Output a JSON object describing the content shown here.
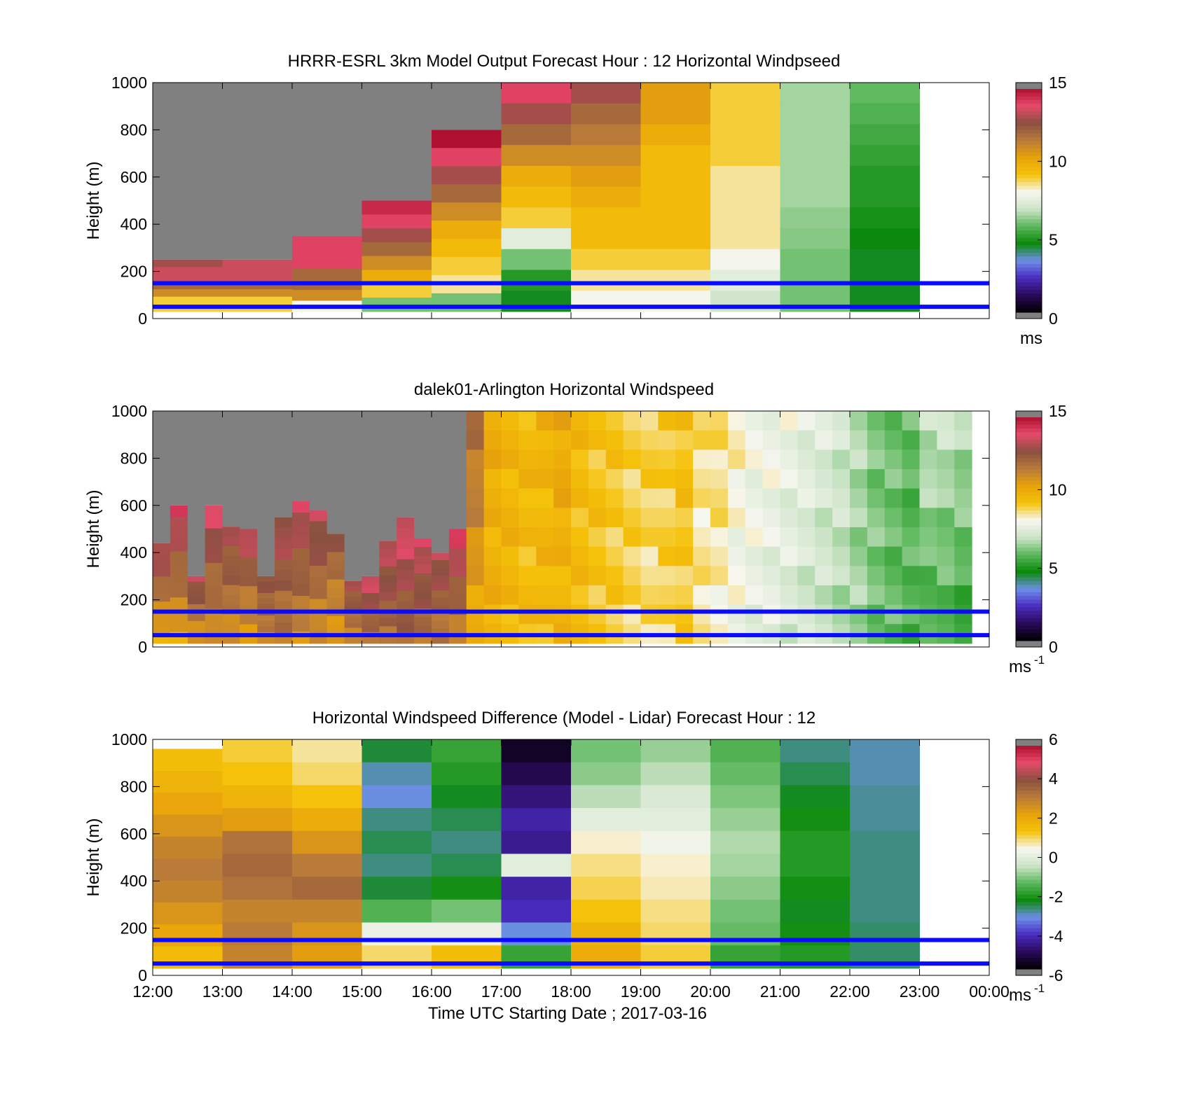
{
  "palette": {
    "windspeed_stops": [
      "#000000",
      "#2a0a5a",
      "#4a2cc0",
      "#6d8fe8",
      "#0a8a0a",
      "#5cb85c",
      "#cde4c8",
      "#f7f7f0",
      "#f5c20a",
      "#e8a20a",
      "#b87a3a",
      "#8a5040",
      "#e64a6a",
      "#b01030"
    ],
    "difference_stops": [
      "#000000",
      "#2a0a5a",
      "#4a2cc0",
      "#6d8fe8",
      "#0a8a0a",
      "#5cb85c",
      "#cde4c8",
      "#f7f7f0",
      "#f5c20a",
      "#e8a20a",
      "#b87a3a",
      "#8a5040",
      "#e64a6a",
      "#b01030"
    ],
    "overflow_color": "#808080",
    "reference_line_color": "#0a0aff"
  },
  "chart_data": [
    {
      "type": "heatmap",
      "title": "HRRR-ESRL 3km Model Output   Forecast Hour : 12 Horizontal Windpseed",
      "ylabel": "Height (m)",
      "xlabel": "",
      "ylim": [
        0,
        1000
      ],
      "yticks": [
        "0",
        "200",
        "400",
        "600",
        "800",
        "1000"
      ],
      "xlim_hours": [
        12,
        24
      ],
      "x_ticks_labeled": false,
      "colorbar": {
        "min": 0,
        "max": 15,
        "ticks": [
          "0",
          "5",
          "10",
          "15"
        ],
        "unit": "ms",
        "unit_sup": ""
      },
      "reference_lines_m": [
        150,
        50
      ],
      "columns": [
        {
          "time": "12:00",
          "top": 250,
          "values": [
            13,
            13.5,
            13.5,
            12,
            11,
            9,
            9
          ]
        },
        {
          "time": "13:00",
          "top": 250,
          "values": [
            13.5,
            13.5,
            13.5,
            12,
            11,
            9,
            9
          ]
        },
        {
          "time": "14:00",
          "top": 350,
          "values": [
            14,
            14,
            14,
            12,
            12,
            11,
            8
          ]
        },
        {
          "time": "15:00",
          "top": 500,
          "values": [
            14.5,
            14,
            13,
            12,
            11,
            10,
            9,
            6
          ]
        },
        {
          "time": "16:00",
          "top": 800,
          "values": [
            15,
            14,
            13,
            12,
            11,
            10,
            9.5,
            9,
            8.5,
            6
          ]
        },
        {
          "time": "17:00",
          "top": 1000,
          "values": [
            14,
            13,
            12,
            11,
            10,
            9.5,
            9,
            7.5,
            6,
            5,
            4.5
          ]
        },
        {
          "time": "18:00",
          "top": 1000,
          "values": [
            13,
            12,
            11.5,
            11,
            10.5,
            10,
            9.5,
            9.5,
            9,
            8.5,
            8
          ]
        },
        {
          "time": "19:00",
          "top": 1000,
          "values": [
            10.5,
            10.5,
            10,
            9.5,
            9.5,
            9.5,
            9.5,
            9.5,
            9,
            8.5,
            8
          ]
        },
        {
          "time": "20:00",
          "top": 1000,
          "values": [
            9,
            9,
            9,
            9,
            8.5,
            8.5,
            8.5,
            8.5,
            8,
            7.5,
            7
          ]
        },
        {
          "time": "21:00",
          "top": 1000,
          "values": [
            6.5,
            6.5,
            6.5,
            6.5,
            6.5,
            6.5,
            6.3,
            6.2,
            6,
            6,
            6
          ]
        },
        {
          "time": "22:00",
          "top": 1000,
          "values": [
            5.8,
            5.6,
            5.4,
            5.2,
            5,
            5,
            4.8,
            4.6,
            4.5,
            4.5,
            4.5
          ]
        }
      ]
    },
    {
      "type": "heatmap",
      "title": "dalek01-Arlington  Horizontal Windspeed",
      "ylabel": "Height (m)",
      "xlabel": "",
      "ylim": [
        0,
        1000
      ],
      "yticks": [
        "0",
        "200",
        "400",
        "600",
        "800",
        "1000"
      ],
      "xlim_hours": [
        12,
        24
      ],
      "x_ticks_labeled": false,
      "colorbar": {
        "min": 0,
        "max": 15,
        "ticks": [
          "0",
          "5",
          "10",
          "15"
        ],
        "unit": "ms",
        "unit_sup": "-1"
      },
      "reference_lines_m": [
        150,
        50
      ],
      "columns_every_15min": {
        "start_hour": 12.0,
        "column_hours": 0.25,
        "tops": [
          440,
          600,
          300,
          600,
          510,
          500,
          300,
          550,
          620,
          580,
          480,
          280,
          300,
          450,
          550,
          460,
          400,
          500,
          1000,
          1000,
          1000,
          1000,
          1000,
          1000,
          1000,
          1000,
          1000,
          1000,
          1000,
          1000,
          1000,
          1000,
          1000,
          1000,
          1000,
          1000,
          1000,
          1000,
          1000,
          1000,
          1000,
          1000,
          1000,
          1000,
          1000,
          1000,
          1000
        ],
        "speed_top": [
          13.5,
          13.8,
          13.2,
          13.6,
          13.0,
          13.4,
          12.8,
          13.2,
          13.5,
          13.3,
          12.5,
          13.0,
          13.6,
          13.4,
          13.8,
          13.5,
          13.2,
          14.0,
          12.0,
          10.0,
          9.8,
          9.6,
          9.8,
          10.2,
          9.5,
          9.3,
          9.2,
          9.0,
          9.0,
          9.1,
          9.4,
          8.6,
          8.8,
          8.3,
          8.0,
          7.9,
          7.8,
          7.6,
          7.4,
          7.2,
          6.6,
          6.2,
          6.0,
          5.8,
          7.0,
          7.0,
          6.8
        ],
        "speed_bottom": [
          10.0,
          10.2,
          10.5,
          10.8,
          11.0,
          10.5,
          11.2,
          11.5,
          11.0,
          10.8,
          10.5,
          11.2,
          11.5,
          11.8,
          12.0,
          11.8,
          11.5,
          11.0,
          10.0,
          9.8,
          9.6,
          9.4,
          9.5,
          9.6,
          9.4,
          9.2,
          9.0,
          8.8,
          8.6,
          8.8,
          9.0,
          8.4,
          8.2,
          7.8,
          7.6,
          7.5,
          7.2,
          7.0,
          6.8,
          6.6,
          6.4,
          6.0,
          5.8,
          5.6,
          5.4,
          5.4,
          5.2
        ]
      }
    },
    {
      "type": "heatmap",
      "title": "Horizontal Windspeed Difference (Model - Lidar) Forecast Hour : 12",
      "ylabel": "Height (m)",
      "xlabel": "Time UTC  Starting Date ; 2017-03-16",
      "ylim": [
        0,
        1000
      ],
      "yticks": [
        "0",
        "200",
        "400",
        "600",
        "800",
        "1000"
      ],
      "xlim_hours": [
        12,
        24
      ],
      "xticks": [
        "12:00",
        "13:00",
        "14:00",
        "15:00",
        "16:00",
        "17:00",
        "18:00",
        "19:00",
        "20:00",
        "21:00",
        "22:00",
        "23:00",
        "00:00"
      ],
      "colorbar": {
        "min": -6,
        "max": 6,
        "ticks": [
          "-6",
          "-4",
          "-2",
          "0",
          "2",
          "4",
          "6"
        ],
        "unit": "ms",
        "unit_sup": "-1"
      },
      "reference_lines_m": [
        150,
        50
      ],
      "columns": [
        {
          "time": "12:00",
          "top": 960,
          "values": [
            1.5,
            1.8,
            2.2,
            2.6,
            3.0,
            3.2,
            3.0,
            2.6,
            2.2,
            1.6
          ]
        },
        {
          "time": "13:00",
          "top": 1000,
          "values": [
            1.2,
            1.4,
            1.8,
            2.4,
            3.4,
            3.6,
            3.4,
            3.0,
            3.2,
            3.0
          ]
        },
        {
          "time": "14:00",
          "top": 1000,
          "values": [
            0.8,
            1.0,
            1.4,
            2.0,
            2.6,
            3.2,
            3.6,
            3.0,
            2.6,
            2.4
          ]
        },
        {
          "time": "15:00",
          "top": 1000,
          "values": [
            -2.5,
            -3.0,
            -3.2,
            -2.8,
            -2.6,
            -2.8,
            -2.5,
            -1.5,
            0.2,
            1.0
          ]
        },
        {
          "time": "16:00",
          "top": 1000,
          "values": [
            -1.8,
            -2.0,
            -2.4,
            -2.6,
            -2.8,
            -2.6,
            -2.2,
            -1.2,
            0.2,
            1.5
          ]
        },
        {
          "time": "17:00",
          "top": 1000,
          "values": [
            -5.6,
            -5.2,
            -4.8,
            -4.4,
            -4.6,
            0,
            -4.4,
            -4.2,
            -3.2,
            -1.8
          ]
        },
        {
          "time": "18:00",
          "top": 1000,
          "values": [
            -1.2,
            -1.0,
            -0.6,
            0.0,
            0.6,
            0.9,
            1.1,
            1.4,
            1.8,
            2.0
          ]
        },
        {
          "time": "19:00",
          "top": 1000,
          "values": [
            -0.9,
            -0.6,
            -0.2,
            0.0,
            0.3,
            0.6,
            0.7,
            0.9,
            1.0,
            1.2
          ]
        },
        {
          "time": "20:00",
          "top": 1000,
          "values": [
            -1.5,
            -1.3,
            -1.1,
            -0.9,
            -0.7,
            -0.8,
            -1.0,
            -1.2,
            -1.3,
            -1.8
          ]
        },
        {
          "time": "21:00",
          "top": 1000,
          "values": [
            -2.8,
            -2.6,
            -2.4,
            -2.2,
            -2.0,
            -2.0,
            -2.2,
            -2.4,
            -2.2,
            -2.0
          ]
        },
        {
          "time": "22:00",
          "top": 1000,
          "values": [
            -3.0,
            -3.0,
            -2.9,
            -2.9,
            -2.8,
            -2.8,
            -2.8,
            -2.8,
            -2.7,
            -2.7
          ]
        }
      ]
    }
  ]
}
